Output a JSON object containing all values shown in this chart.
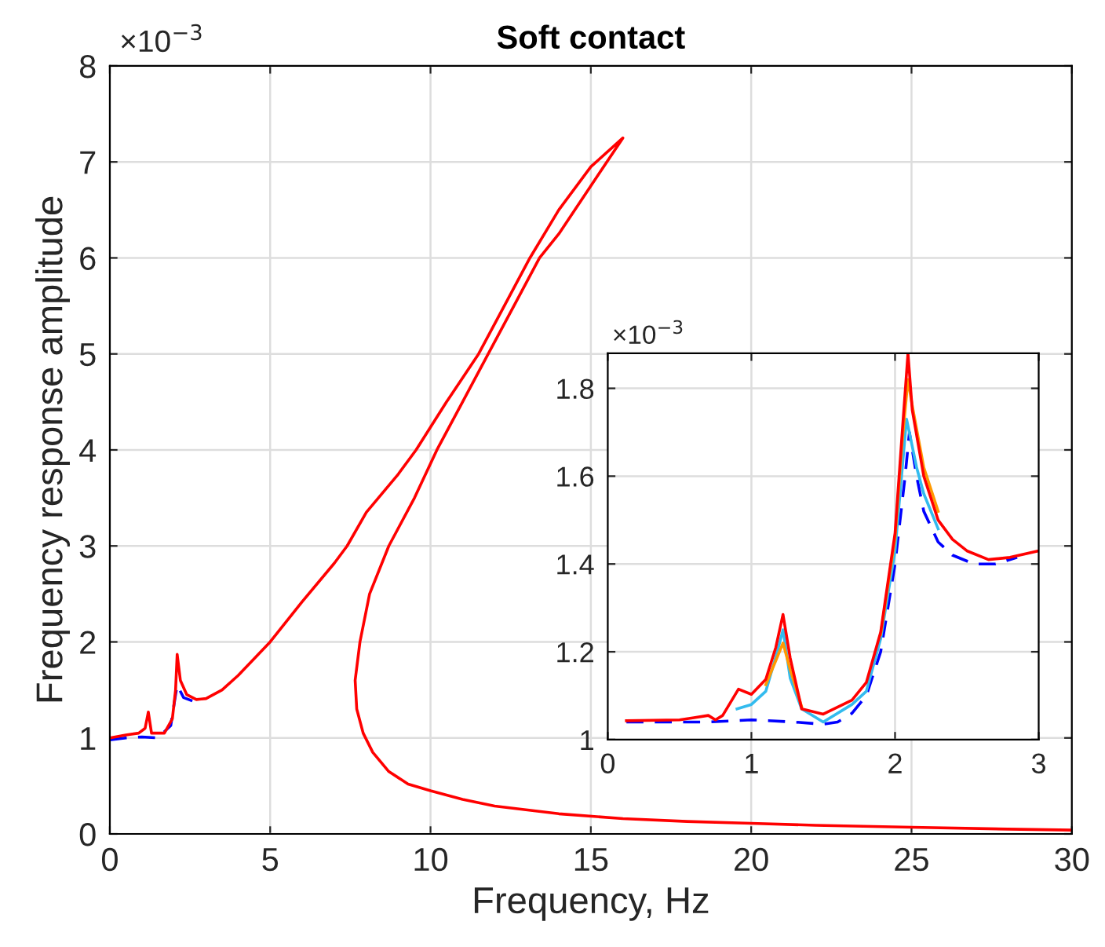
{
  "chart_data": [
    {
      "type": "line",
      "title": "Soft contact",
      "xlabel": "Frequency, Hz",
      "ylabel": "Frequency response amplitude",
      "annotations": [
        "×10$^{−3}$"
      ],
      "xlim": [
        0,
        30
      ],
      "ylim": [
        0,
        8
      ],
      "xticks": [
        0,
        5,
        10,
        15,
        20,
        25,
        30
      ],
      "yticks": [
        0,
        1,
        2,
        3,
        4,
        5,
        6,
        7,
        8
      ],
      "grid": true,
      "series": [
        {
          "color": "#0000ff",
          "line_style": "dashed",
          "x": [
            0,
            0.5,
            1.0,
            1.5,
            1.9,
            2.05,
            2.1,
            2.3,
            2.7
          ],
          "values": [
            0.98,
            1.0,
            1.01,
            1.0,
            1.13,
            1.45,
            1.55,
            1.42,
            1.37
          ]
        },
        {
          "color": "#ff0000",
          "line_style": "solid",
          "x": [
            0,
            0.5,
            0.9,
            1.1,
            1.2,
            1.3,
            1.7,
            1.95,
            2.05,
            2.1,
            2.2,
            2.4,
            2.7,
            3,
            3.5,
            4,
            5,
            6,
            7,
            7.4,
            8,
            9,
            9.55,
            10.5,
            11.5,
            12.3,
            13.1,
            14,
            15,
            16,
            15,
            14,
            13.4,
            12.6,
            11.8,
            11,
            10.2,
            9.5,
            8.7,
            8.1,
            7.8,
            7.65,
            7.7,
            7.9,
            8.2,
            8.7,
            9.3,
            10,
            11,
            12,
            14,
            16,
            18,
            20,
            22,
            25,
            28,
            30
          ],
          "values": [
            1.0,
            1.03,
            1.05,
            1.1,
            1.27,
            1.05,
            1.05,
            1.2,
            1.5,
            1.87,
            1.6,
            1.45,
            1.4,
            1.41,
            1.5,
            1.65,
            2.0,
            2.42,
            2.82,
            3.0,
            3.35,
            3.75,
            4.0,
            4.5,
            5.0,
            5.5,
            6.0,
            6.5,
            6.95,
            7.25,
            6.75,
            6.25,
            6.0,
            5.5,
            5.0,
            4.5,
            4.0,
            3.5,
            3.0,
            2.5,
            2.0,
            1.6,
            1.3,
            1.05,
            0.85,
            0.65,
            0.52,
            0.45,
            0.36,
            0.29,
            0.21,
            0.16,
            0.13,
            0.11,
            0.09,
            0.07,
            0.05,
            0.04
          ]
        }
      ]
    },
    {
      "type": "line",
      "annotations": [
        "×10$^{−3}$"
      ],
      "xlim": [
        0,
        3
      ],
      "ylim": [
        1,
        1.88
      ],
      "xticks": [
        0,
        1,
        2,
        3
      ],
      "yticks": [
        1,
        1.2,
        1.4,
        1.6,
        1.8
      ],
      "grid": true,
      "series": [
        {
          "color": "#0000ff",
          "line_style": "dashed",
          "x": [
            0.13,
            0.7,
            1.0,
            1.3,
            1.5,
            1.6,
            1.7,
            1.8,
            1.9,
            2.0,
            2.07,
            2.1,
            2.15,
            2.2,
            2.3,
            2.4,
            2.55,
            2.7,
            2.85
          ],
          "values": [
            1.04,
            1.04,
            1.045,
            1.04,
            1.035,
            1.04,
            1.06,
            1.1,
            1.2,
            1.4,
            1.6,
            1.7,
            1.6,
            1.52,
            1.45,
            1.42,
            1.4,
            1.4,
            1.415
          ]
        },
        {
          "color": "#33bbee",
          "line_style": "solid",
          "x": [
            0.9,
            1.0,
            1.1,
            1.18,
            1.22,
            1.27,
            1.35,
            1.5,
            1.7,
            1.8,
            1.9,
            2.0,
            2.08,
            2.15,
            2.2,
            2.3
          ],
          "values": [
            1.07,
            1.08,
            1.11,
            1.2,
            1.25,
            1.14,
            1.07,
            1.04,
            1.08,
            1.11,
            1.23,
            1.43,
            1.73,
            1.62,
            1.56,
            1.48
          ]
        },
        {
          "color": "#ff9900",
          "line_style": "solid",
          "x": [
            1.1,
            1.17,
            1.22,
            1.27,
            1.35,
            1.6,
            1.9,
            2.0,
            2.05,
            2.09,
            2.12,
            2.2,
            2.3
          ],
          "values": [
            1.125,
            1.18,
            1.22,
            1.16,
            1.075,
            null,
            1.24,
            1.46,
            1.68,
            1.82,
            1.76,
            1.62,
            1.52
          ]
        },
        {
          "color": "#ff0000",
          "line_style": "solid",
          "x": [
            0.13,
            0.5,
            0.6,
            0.7,
            0.75,
            0.8,
            0.91,
            1.0,
            1.1,
            1.17,
            1.22,
            1.27,
            1.35,
            1.5,
            1.7,
            1.8,
            1.9,
            2.0,
            2.05,
            2.09,
            2.12,
            2.2,
            2.3,
            2.4,
            2.5,
            2.65,
            2.8,
            3.0
          ],
          "values": [
            1.043,
            1.045,
            1.05,
            1.055,
            1.045,
            1.055,
            1.115,
            1.103,
            1.137,
            1.21,
            1.285,
            1.186,
            1.07,
            1.058,
            1.09,
            1.13,
            1.245,
            1.47,
            1.7,
            1.88,
            1.75,
            1.6,
            1.5,
            1.456,
            1.43,
            1.41,
            1.415,
            1.43
          ]
        }
      ]
    }
  ]
}
